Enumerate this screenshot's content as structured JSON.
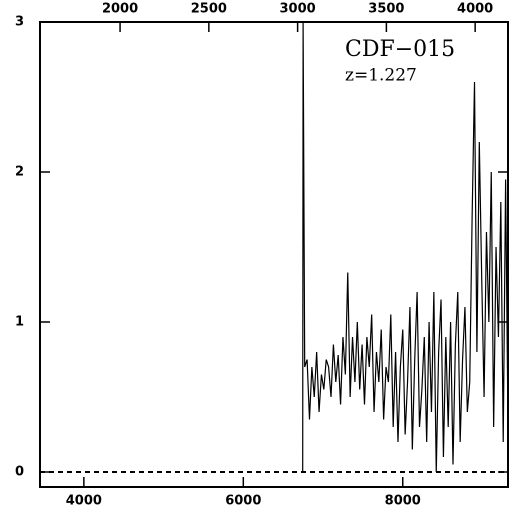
{
  "chart_data": {
    "type": "line",
    "annotations": [
      "CDF−015",
      "z=1.227"
    ],
    "x": [
      6745,
      6750,
      6770,
      6800,
      6830,
      6860,
      6890,
      6920,
      6950,
      6980,
      7010,
      7040,
      7070,
      7100,
      7130,
      7160,
      7190,
      7220,
      7250,
      7280,
      7310,
      7340,
      7370,
      7400,
      7430,
      7460,
      7490,
      7520,
      7550,
      7580,
      7610,
      7640,
      7670,
      7700,
      7730,
      7760,
      7790,
      7820,
      7850,
      7880,
      7910,
      7940,
      7970,
      8000,
      8030,
      8060,
      8090,
      8120,
      8150,
      8180,
      8210,
      8240,
      8270,
      8300,
      8330,
      8360,
      8390,
      8420,
      8450,
      8480,
      8510,
      8540,
      8570,
      8600,
      8630,
      8660,
      8690,
      8720,
      8750,
      8780,
      8810,
      8840,
      8870,
      8900,
      8930,
      8960,
      8990,
      9020,
      9050,
      9080,
      9110,
      9140,
      9170,
      9200,
      9230,
      9260,
      9290,
      9320
    ],
    "values": [
      0,
      3,
      0.7,
      0.75,
      0.35,
      0.7,
      0.5,
      0.8,
      0.4,
      0.65,
      0.55,
      0.75,
      0.7,
      0.5,
      0.85,
      0.6,
      0.78,
      0.45,
      0.9,
      0.65,
      1.33,
      0.5,
      0.9,
      0.6,
      1.0,
      0.55,
      0.85,
      0.45,
      0.9,
      0.7,
      1.05,
      0.4,
      0.8,
      0.6,
      0.95,
      0.35,
      0.7,
      0.6,
      1.05,
      0.3,
      0.8,
      0.2,
      0.7,
      0.95,
      0.25,
      0.6,
      1.1,
      0.15,
      0.75,
      1.2,
      0.3,
      0.55,
      0.9,
      0.2,
      1.0,
      0.4,
      1.2,
      0.0,
      0.8,
      1.15,
      0.1,
      0.9,
      0.3,
      1.0,
      0.05,
      0.85,
      1.2,
      0.2,
      0.75,
      1.1,
      0.4,
      0.6,
      1.7,
      2.6,
      0.8,
      2.2,
      1.3,
      0.5,
      1.6,
      1.0,
      2.0,
      0.3,
      1.5,
      0.9,
      1.8,
      0.2,
      1.95,
      0.3
    ],
    "color": "#000000",
    "xlim": [
      3450,
      9320
    ],
    "xticks": [
      4000,
      6000,
      8000
    ],
    "x2lim": [
      1549,
      4185
    ],
    "x2ticks": [
      2000,
      2500,
      3000,
      3500,
      4000
    ],
    "ylim": [
      -0.1,
      3
    ],
    "yticks": [
      0,
      1,
      2,
      3
    ],
    "hline": 0
  }
}
